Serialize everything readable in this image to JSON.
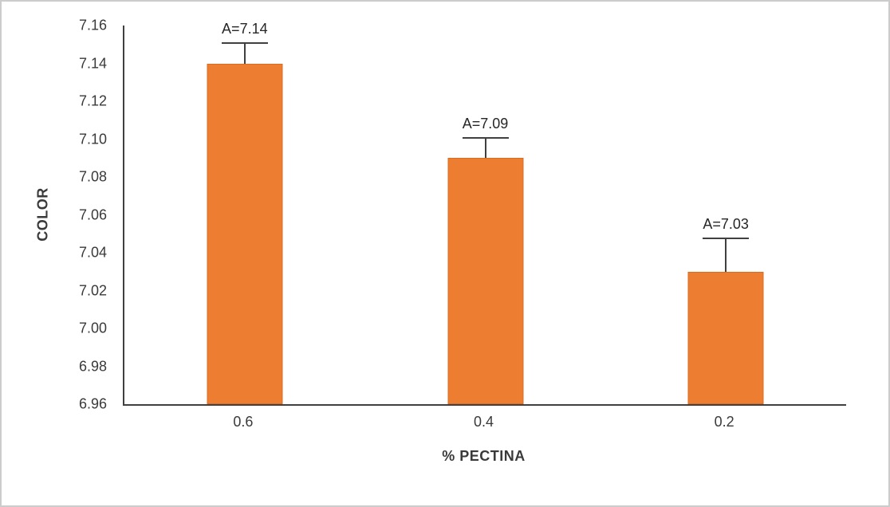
{
  "chart_data": {
    "type": "bar",
    "title": "",
    "categories": [
      "0.6",
      "0.4",
      "0.2"
    ],
    "values": [
      7.14,
      7.09,
      7.03
    ],
    "errors": [
      0.011,
      0.011,
      0.018
    ],
    "bar_value_labels": [
      "A=7.14",
      "A=7.09",
      "A=7.03"
    ],
    "xlabel": "% PECTINA",
    "ylabel": "COLOR",
    "ylim": [
      6.96,
      7.16
    ],
    "ytick_values": [
      6.96,
      6.98,
      7.0,
      7.02,
      7.04,
      7.06,
      7.08,
      7.1,
      7.12,
      7.14,
      7.16
    ],
    "ytick_labels": [
      "6.96",
      "6.98",
      "7.00",
      "7.02",
      "7.04",
      "7.06",
      "7.08",
      "7.10",
      "7.12",
      "7.14",
      "7.16"
    ],
    "bar_color": "#ED7D31",
    "axis_color": "#404040",
    "grid": false,
    "legend": false
  }
}
